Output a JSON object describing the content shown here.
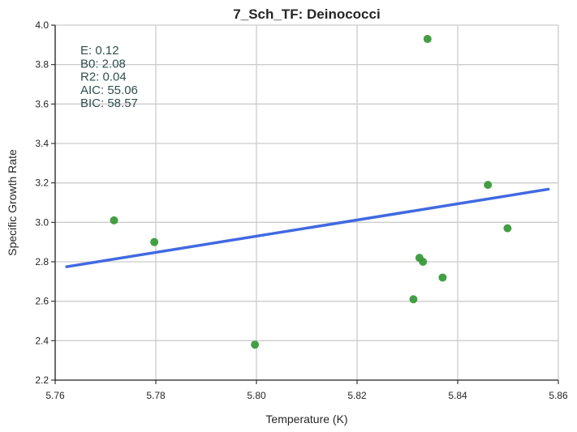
{
  "chart_data": {
    "type": "scatter",
    "title": "7_Sch_TF: Deinococci",
    "xlabel": "Temperature (K)",
    "ylabel": "Specific Growth Rate",
    "xlim": [
      5.76,
      5.86
    ],
    "ylim": [
      2.2,
      4.0
    ],
    "xticks": [
      "5.76",
      "5.78",
      "5.80",
      "5.82",
      "5.84",
      "5.86"
    ],
    "yticks": [
      "2.2",
      "2.4",
      "2.6",
      "2.8",
      "3.0",
      "3.2",
      "3.4",
      "3.6",
      "3.8",
      "4.0"
    ],
    "grid": true,
    "points_color": "#3a9a3a",
    "line_color": "#4169e1",
    "series": [
      {
        "type": "scatter",
        "x": [
          5.7717,
          5.7797,
          5.7997,
          5.8312,
          5.8324,
          5.8331,
          5.834,
          5.837,
          5.846,
          5.8499
        ],
        "y": [
          3.01,
          2.9,
          2.38,
          2.61,
          2.82,
          2.8,
          3.93,
          2.72,
          3.19,
          2.97
        ]
      },
      {
        "type": "line",
        "x": [
          5.7623,
          5.858
        ],
        "y": [
          2.775,
          3.168
        ]
      }
    ],
    "annotations": [
      "E:  0.12",
      "B0:  2.08",
      "R2:  0.04",
      "AIC: 55.06",
      "BIC: 58.57"
    ]
  }
}
